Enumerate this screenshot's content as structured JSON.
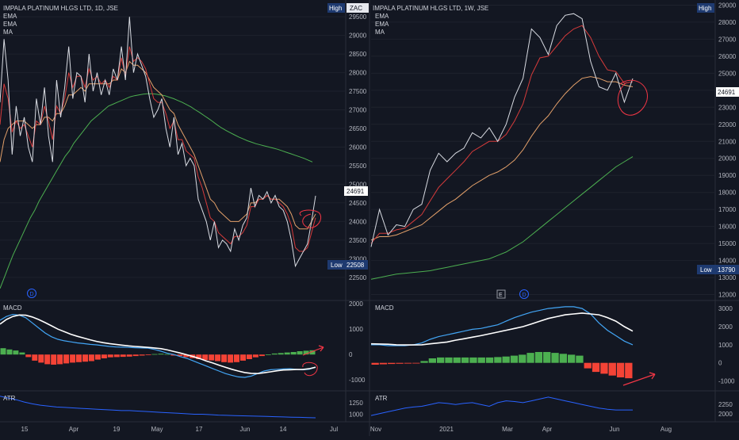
{
  "colors": {
    "bg": "#131722",
    "grid": "#1e222d",
    "divider": "#2a2e39",
    "price": "#d8dbe2",
    "ema_fast": "#d63b3b",
    "ema_slow": "#e3a06a",
    "ma": "#4caf50",
    "macd_line": "#42a5f5",
    "signal_line": "#ffffff",
    "hist_pos": "#4caf50",
    "hist_neg": "#f44336",
    "atr": "#2962ff",
    "annotation": "#f23645",
    "label_high": "#1e3a70",
    "label_low": "#1e3a70"
  },
  "chart_data": [
    {
      "type": "line",
      "panel": "daily",
      "title": "IMPALA PLATINUM HLGS LTD, 1D, JSE",
      "currency": "ZAC",
      "legend": [
        "EMA",
        "EMA",
        "MA"
      ],
      "high_label": "High",
      "low_label": "Low",
      "low_value": "22508",
      "last_value": "24691",
      "ylim": [
        21900,
        29950
      ],
      "y_ticks": [
        22500,
        23000,
        23500,
        24000,
        24500,
        25000,
        25500,
        26000,
        26500,
        27000,
        27500,
        28000,
        28500,
        29000,
        29500
      ],
      "x_ticks": [
        "15",
        "Apr",
        "19",
        "May",
        "17",
        "Jun",
        "14",
        "Jul"
      ],
      "series": [
        {
          "key": "price",
          "values": [
            27200,
            28900,
            27800,
            25800,
            27100,
            26300,
            26800,
            26000,
            25600,
            27300,
            26600,
            27600,
            26300,
            25600,
            27800,
            26800,
            27600,
            28700,
            27300,
            28000,
            27900,
            27200,
            28500,
            27500,
            28000,
            27400,
            27800,
            27400,
            28100,
            27800,
            28700,
            27800,
            29500,
            28000,
            28500,
            28200,
            27900,
            27300,
            26800,
            27000,
            27300,
            26500,
            26000,
            26800,
            25800,
            26100,
            25500,
            25700,
            25500,
            24600,
            24300,
            24000,
            23500,
            24000,
            23300,
            23500,
            23400,
            23200,
            23800,
            23500,
            23900,
            24100,
            24900,
            24400,
            24700,
            24600,
            24800,
            24500,
            24700,
            24400,
            24300,
            24000,
            23500,
            22800,
            23000,
            23200,
            23400,
            24000,
            24691
          ]
        },
        {
          "key": "ema_fast",
          "values": [
            26600,
            27700,
            27300,
            26400,
            26700,
            26500,
            26600,
            26300,
            26000,
            26700,
            26600,
            27100,
            26700,
            26200,
            27100,
            26900,
            27300,
            28000,
            27600,
            27900,
            27900,
            27600,
            28100,
            27800,
            27900,
            27700,
            27800,
            27600,
            27900,
            27800,
            28400,
            27900,
            28700,
            28300,
            28400,
            28300,
            28100,
            27700,
            27300,
            27200,
            27200,
            26900,
            26500,
            26700,
            26200,
            26200,
            25900,
            25800,
            25700,
            25200,
            24900,
            24500,
            24100,
            24000,
            23700,
            23600,
            23500,
            23400,
            23600,
            23600,
            23700,
            23900,
            24400,
            24400,
            24600,
            24600,
            24700,
            24600,
            24600,
            24500,
            24400,
            24200,
            23900,
            23300,
            23200,
            23200,
            23300,
            23700,
            24100
          ]
        },
        {
          "key": "ema_slow",
          "values": [
            25600,
            26200,
            26500,
            26600,
            26700,
            26700,
            26700,
            26600,
            26500,
            26600,
            26600,
            26800,
            26800,
            26700,
            26900,
            26900,
            27100,
            27400,
            27400,
            27500,
            27600,
            27500,
            27700,
            27700,
            27700,
            27700,
            27700,
            27700,
            27800,
            27800,
            28100,
            28000,
            28300,
            28200,
            28200,
            28100,
            28000,
            27800,
            27600,
            27500,
            27400,
            27200,
            27000,
            26900,
            26600,
            26400,
            26200,
            26000,
            25800,
            25500,
            25200,
            24900,
            24600,
            24500,
            24300,
            24200,
            24100,
            24000,
            24000,
            24000,
            24100,
            24200,
            24500,
            24500,
            24600,
            24600,
            24700,
            24600,
            24600,
            24600,
            24500,
            24400,
            24200,
            23900,
            23800,
            23800,
            23800,
            24000,
            24200
          ]
        },
        {
          "key": "ma",
          "values": [
            22200,
            22500,
            22800,
            23100,
            23350,
            23600,
            23850,
            24100,
            24300,
            24550,
            24750,
            24950,
            25150,
            25350,
            25550,
            25750,
            25900,
            26100,
            26250,
            26400,
            26550,
            26700,
            26800,
            26900,
            27000,
            27100,
            27150,
            27200,
            27250,
            27300,
            27350,
            27380,
            27400,
            27420,
            27430,
            27430,
            27420,
            27400,
            27380,
            27340,
            27300,
            27250,
            27200,
            27140,
            27080,
            27000,
            26930,
            26850,
            26770,
            26690,
            26600,
            26520,
            26450,
            26390,
            26330,
            26270,
            26220,
            26170,
            26130,
            26090,
            26060,
            26030,
            26000,
            25970,
            25940,
            25900,
            25860,
            25820,
            25780,
            25740,
            25700,
            25650,
            25600
          ]
        }
      ],
      "macd": {
        "label": "MACD",
        "ylim": [
          -1400,
          2100
        ],
        "y_ticks": [
          2000,
          1000,
          0,
          -1000
        ],
        "macd_line": [
          1350,
          1500,
          1580,
          1550,
          1450,
          1250,
          1050,
          850,
          700,
          600,
          540,
          500,
          460,
          430,
          400,
          380,
          350,
          320,
          300,
          290,
          280,
          270,
          260,
          250,
          200,
          130,
          50,
          0,
          -80,
          -150,
          -250,
          -350,
          -450,
          -550,
          -650,
          -750,
          -820,
          -880,
          -900,
          -850,
          -750,
          -650,
          -600,
          -580,
          -570,
          -560,
          -580,
          -600,
          -580,
          -500
        ],
        "signal_line": [
          1200,
          1380,
          1500,
          1560,
          1550,
          1480,
          1380,
          1260,
          1130,
          1000,
          900,
          800,
          720,
          650,
          580,
          520,
          470,
          430,
          400,
          370,
          340,
          320,
          300,
          280,
          260,
          230,
          180,
          120,
          60,
          -10,
          -80,
          -160,
          -250,
          -330,
          -420,
          -500,
          -580,
          -650,
          -710,
          -740,
          -750,
          -720,
          -680,
          -640,
          -610,
          -600,
          -590,
          -590,
          -560,
          -500
        ],
        "hist": [
          250,
          200,
          160,
          80,
          -100,
          -240,
          -320,
          -380,
          -400,
          -380,
          -350,
          -320,
          -300,
          -280,
          -260,
          -200,
          -150,
          -110,
          -100,
          -90,
          -80,
          -60,
          -40,
          -20,
          20,
          30,
          20,
          -40,
          -60,
          -100,
          -140,
          -180,
          -220,
          -230,
          -260,
          -300,
          -320,
          -300,
          -240,
          -180,
          -110,
          -60,
          0,
          40,
          60,
          80,
          100,
          130,
          150,
          170
        ]
      },
      "atr": {
        "label": "ATR",
        "y_ticks": [
          1250,
          1000
        ],
        "ylim": [
          850,
          1500
        ],
        "values": [
          1400,
          1360,
          1320,
          1270,
          1230,
          1200,
          1180,
          1160,
          1150,
          1140,
          1130,
          1120,
          1110,
          1100,
          1090,
          1080,
          1080,
          1070,
          1060,
          1050,
          1040,
          1030,
          1020,
          1010,
          1000,
          1000,
          990,
          980,
          975,
          970,
          965,
          960,
          955,
          950,
          945,
          940,
          935,
          930,
          925,
          920
        ]
      }
    },
    {
      "type": "line",
      "panel": "weekly",
      "title": "IMPALA PLATINUM HLGS LTD, 1W, JSE",
      "legend": [
        "EMA",
        "EMA",
        "MA"
      ],
      "high_label": "High",
      "low_label": "Low",
      "low_value": "13790",
      "last_value": "24691",
      "markers": [
        "E",
        "D"
      ],
      "ylim": [
        11700,
        29300
      ],
      "y_ticks": [
        12000,
        13000,
        14000,
        15000,
        16000,
        17000,
        18000,
        19000,
        20000,
        21000,
        22000,
        23000,
        24000,
        25000,
        26000,
        27000,
        28000,
        29000
      ],
      "x_ticks": [
        "Nov",
        "2021",
        "Mar",
        "Apr",
        "Jun",
        "Aug"
      ],
      "series": [
        {
          "key": "price",
          "values": [
            14800,
            17000,
            15500,
            16100,
            16000,
            17000,
            17300,
            19300,
            20300,
            19800,
            20300,
            20600,
            21500,
            21200,
            21800,
            21000,
            22000,
            23600,
            24700,
            27600,
            27100,
            26100,
            27800,
            28400,
            28500,
            28200,
            25700,
            24200,
            24000,
            25000,
            23300,
            24691
          ]
        },
        {
          "key": "ema_fast",
          "values": [
            15000,
            15600,
            15600,
            15800,
            15900,
            16300,
            16700,
            17500,
            18300,
            18800,
            19300,
            19800,
            20400,
            20700,
            21000,
            21000,
            21400,
            22200,
            23200,
            24900,
            25900,
            26000,
            26600,
            27200,
            27600,
            27800,
            27100,
            26000,
            25200,
            25100,
            24400,
            24500
          ]
        },
        {
          "key": "ema_slow",
          "values": [
            15200,
            15400,
            15400,
            15500,
            15700,
            15900,
            16100,
            16500,
            16900,
            17300,
            17600,
            18000,
            18400,
            18700,
            19000,
            19200,
            19500,
            19900,
            20500,
            21300,
            22000,
            22500,
            23200,
            23800,
            24300,
            24700,
            24800,
            24700,
            24500,
            24500,
            24300,
            24200
          ]
        },
        {
          "key": "ma",
          "values": [
            12900,
            13000,
            13100,
            13200,
            13250,
            13300,
            13350,
            13400,
            13500,
            13600,
            13700,
            13800,
            13900,
            14000,
            14100,
            14300,
            14500,
            14800,
            15100,
            15500,
            15900,
            16300,
            16700,
            17100,
            17500,
            17900,
            18300,
            18700,
            19100,
            19500,
            19800,
            20100
          ]
        }
      ],
      "macd": {
        "label": "MACD",
        "ylim": [
          -1500,
          3400
        ],
        "y_ticks": [
          3000,
          2000,
          1000,
          0,
          -1000
        ],
        "macd_line": [
          1000,
          1000,
          950,
          950,
          950,
          1000,
          1100,
          1300,
          1450,
          1550,
          1650,
          1750,
          1850,
          1900,
          2000,
          2100,
          2300,
          2500,
          2650,
          2800,
          2900,
          3000,
          3050,
          3100,
          3100,
          3000,
          2700,
          2200,
          1800,
          1500,
          1200,
          1000
        ],
        "signal_line": [
          1050,
          1040,
          1030,
          1000,
          990,
          990,
          1000,
          1050,
          1100,
          1150,
          1250,
          1330,
          1420,
          1500,
          1600,
          1700,
          1800,
          1900,
          2000,
          2150,
          2300,
          2450,
          2550,
          2650,
          2700,
          2750,
          2700,
          2650,
          2500,
          2300,
          2000,
          1750
        ],
        "hist": [
          -100,
          -80,
          -60,
          -50,
          -40,
          -20,
          100,
          250,
          300,
          300,
          300,
          300,
          300,
          300,
          300,
          320,
          350,
          400,
          450,
          550,
          600,
          600,
          550,
          500,
          450,
          400,
          -300,
          -500,
          -600,
          -700,
          -800,
          -850
        ]
      },
      "atr": {
        "label": "ATR",
        "y_ticks": [
          2250,
          2000
        ],
        "ylim": [
          1800,
          2600
        ],
        "values": [
          1950,
          2000,
          2050,
          2100,
          2150,
          2180,
          2200,
          2250,
          2300,
          2280,
          2250,
          2280,
          2300,
          2250,
          2200,
          2300,
          2350,
          2330,
          2300,
          2350,
          2400,
          2450,
          2400,
          2350,
          2300,
          2250,
          2200,
          2150,
          2120,
          2100,
          2100,
          2100
        ]
      }
    }
  ]
}
